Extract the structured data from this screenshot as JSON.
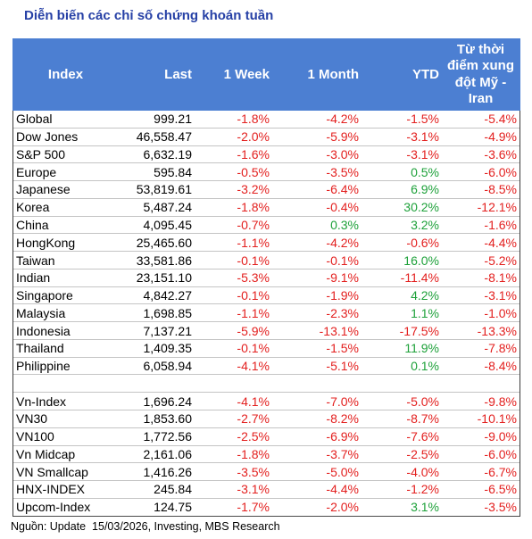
{
  "title": "Diễn biến các chỉ số chứng khoán tuần",
  "colors": {
    "title": "#2741a6",
    "header_background": "#4c7fd2",
    "header_text": "#ffffff",
    "negative": "#e3201f",
    "positive": "#1ea13a"
  },
  "table": {
    "columns": [
      "Index",
      "Last",
      "1 Week",
      "1 Month",
      "YTD",
      "Từ thời\nđiểm xung\nđột Mỹ -\nIran"
    ],
    "groups": [
      {
        "rows": [
          [
            "Global",
            "999.21",
            "-1.8%",
            "-4.2%",
            "-1.5%",
            "-5.4%"
          ],
          [
            "Dow Jones",
            "46,558.47",
            "-2.0%",
            "-5.9%",
            "-3.1%",
            "-4.9%"
          ],
          [
            "S&P 500",
            "6,632.19",
            "-1.6%",
            "-3.0%",
            "-3.1%",
            "-3.6%"
          ],
          [
            "Europe",
            "595.84",
            "-0.5%",
            "-3.5%",
            "0.5%",
            "-6.0%"
          ],
          [
            "Japanese",
            "53,819.61",
            "-3.2%",
            "-6.4%",
            "6.9%",
            "-8.5%"
          ],
          [
            "Korea",
            "5,487.24",
            "-1.8%",
            "-0.4%",
            "30.2%",
            "-12.1%"
          ],
          [
            "China",
            "4,095.45",
            "-0.7%",
            "0.3%",
            "3.2%",
            "-1.6%"
          ],
          [
            "HongKong",
            "25,465.60",
            "-1.1%",
            "-4.2%",
            "-0.6%",
            "-4.4%"
          ],
          [
            "Taiwan",
            "33,581.86",
            "-0.1%",
            "-0.1%",
            "16.0%",
            "-5.2%"
          ],
          [
            "Indian",
            "23,151.10",
            "-5.3%",
            "-9.1%",
            "-11.4%",
            "-8.1%"
          ],
          [
            "Singapore",
            "4,842.27",
            "-0.1%",
            "-1.9%",
            "4.2%",
            "-3.1%"
          ],
          [
            "Malaysia",
            "1,698.85",
            "-1.1%",
            "-2.3%",
            "1.1%",
            "-1.0%"
          ],
          [
            "Indonesia",
            "7,137.21",
            "-5.9%",
            "-13.1%",
            "-17.5%",
            "-13.3%"
          ],
          [
            "Thailand",
            "1,409.35",
            "-0.1%",
            "-1.5%",
            "11.9%",
            "-7.8%"
          ],
          [
            "Philippine",
            "6,058.94",
            "-4.1%",
            "-5.1%",
            "0.1%",
            "-8.4%"
          ]
        ]
      },
      {
        "rows": [
          [
            "Vn-Index",
            "1,696.24",
            "-4.1%",
            "-7.0%",
            "-5.0%",
            "-9.8%"
          ],
          [
            "VN30",
            "1,853.60",
            "-2.7%",
            "-8.2%",
            "-8.7%",
            "-10.1%"
          ],
          [
            "VN100",
            "1,772.56",
            "-2.5%",
            "-6.9%",
            "-7.6%",
            "-9.0%"
          ],
          [
            "Vn Midcap",
            "2,161.06",
            "-1.8%",
            "-3.7%",
            "-2.5%",
            "-6.0%"
          ],
          [
            "VN Smallcap",
            "1,416.26",
            "-3.5%",
            "-5.0%",
            "-4.0%",
            "-6.7%"
          ],
          [
            "HNX-INDEX",
            "245.84",
            "-3.1%",
            "-4.4%",
            "-1.2%",
            "-6.5%"
          ],
          [
            "Upcom-Index",
            "124.75",
            "-1.7%",
            "-2.0%",
            "3.1%",
            "-3.5%"
          ]
        ]
      }
    ]
  },
  "source_note": "Nguồn: Update  15/03/2026, Investing, MBS Research"
}
